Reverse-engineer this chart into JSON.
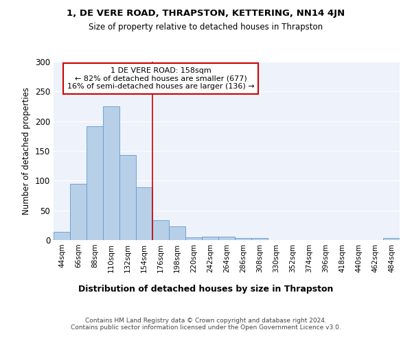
{
  "title": "1, DE VERE ROAD, THRAPSTON, KETTERING, NN14 4JN",
  "subtitle": "Size of property relative to detached houses in Thrapston",
  "xlabel": "Distribution of detached houses by size in Thrapston",
  "ylabel": "Number of detached properties",
  "annotation_line1": "1 DE VERE ROAD: 158sqm",
  "annotation_line2": "← 82% of detached houses are smaller (677)",
  "annotation_line3": "16% of semi-detached houses are larger (136) →",
  "bar_labels": [
    "44sqm",
    "66sqm",
    "88sqm",
    "110sqm",
    "132sqm",
    "154sqm",
    "176sqm",
    "198sqm",
    "220sqm",
    "242sqm",
    "264sqm",
    "286sqm",
    "308sqm",
    "330sqm",
    "352sqm",
    "374sqm",
    "396sqm",
    "418sqm",
    "440sqm",
    "462sqm",
    "484sqm"
  ],
  "bar_values": [
    14,
    95,
    192,
    225,
    143,
    89,
    34,
    23,
    5,
    6,
    6,
    4,
    3,
    0,
    0,
    0,
    0,
    0,
    0,
    0,
    3
  ],
  "bar_color": "#b8cfe8",
  "bar_edge_color": "#5b9bd5",
  "vline_color": "#cc0000",
  "vline_x": 5.5,
  "ylim": [
    0,
    300
  ],
  "yticks": [
    0,
    50,
    100,
    150,
    200,
    250,
    300
  ],
  "background_color": "#eef2fa",
  "grid_color": "#ffffff",
  "annotation_box_color": "#ffffff",
  "annotation_box_edge": "#cc0000",
  "footer_line1": "Contains HM Land Registry data © Crown copyright and database right 2024.",
  "footer_line2": "Contains public sector information licensed under the Open Government Licence v3.0."
}
